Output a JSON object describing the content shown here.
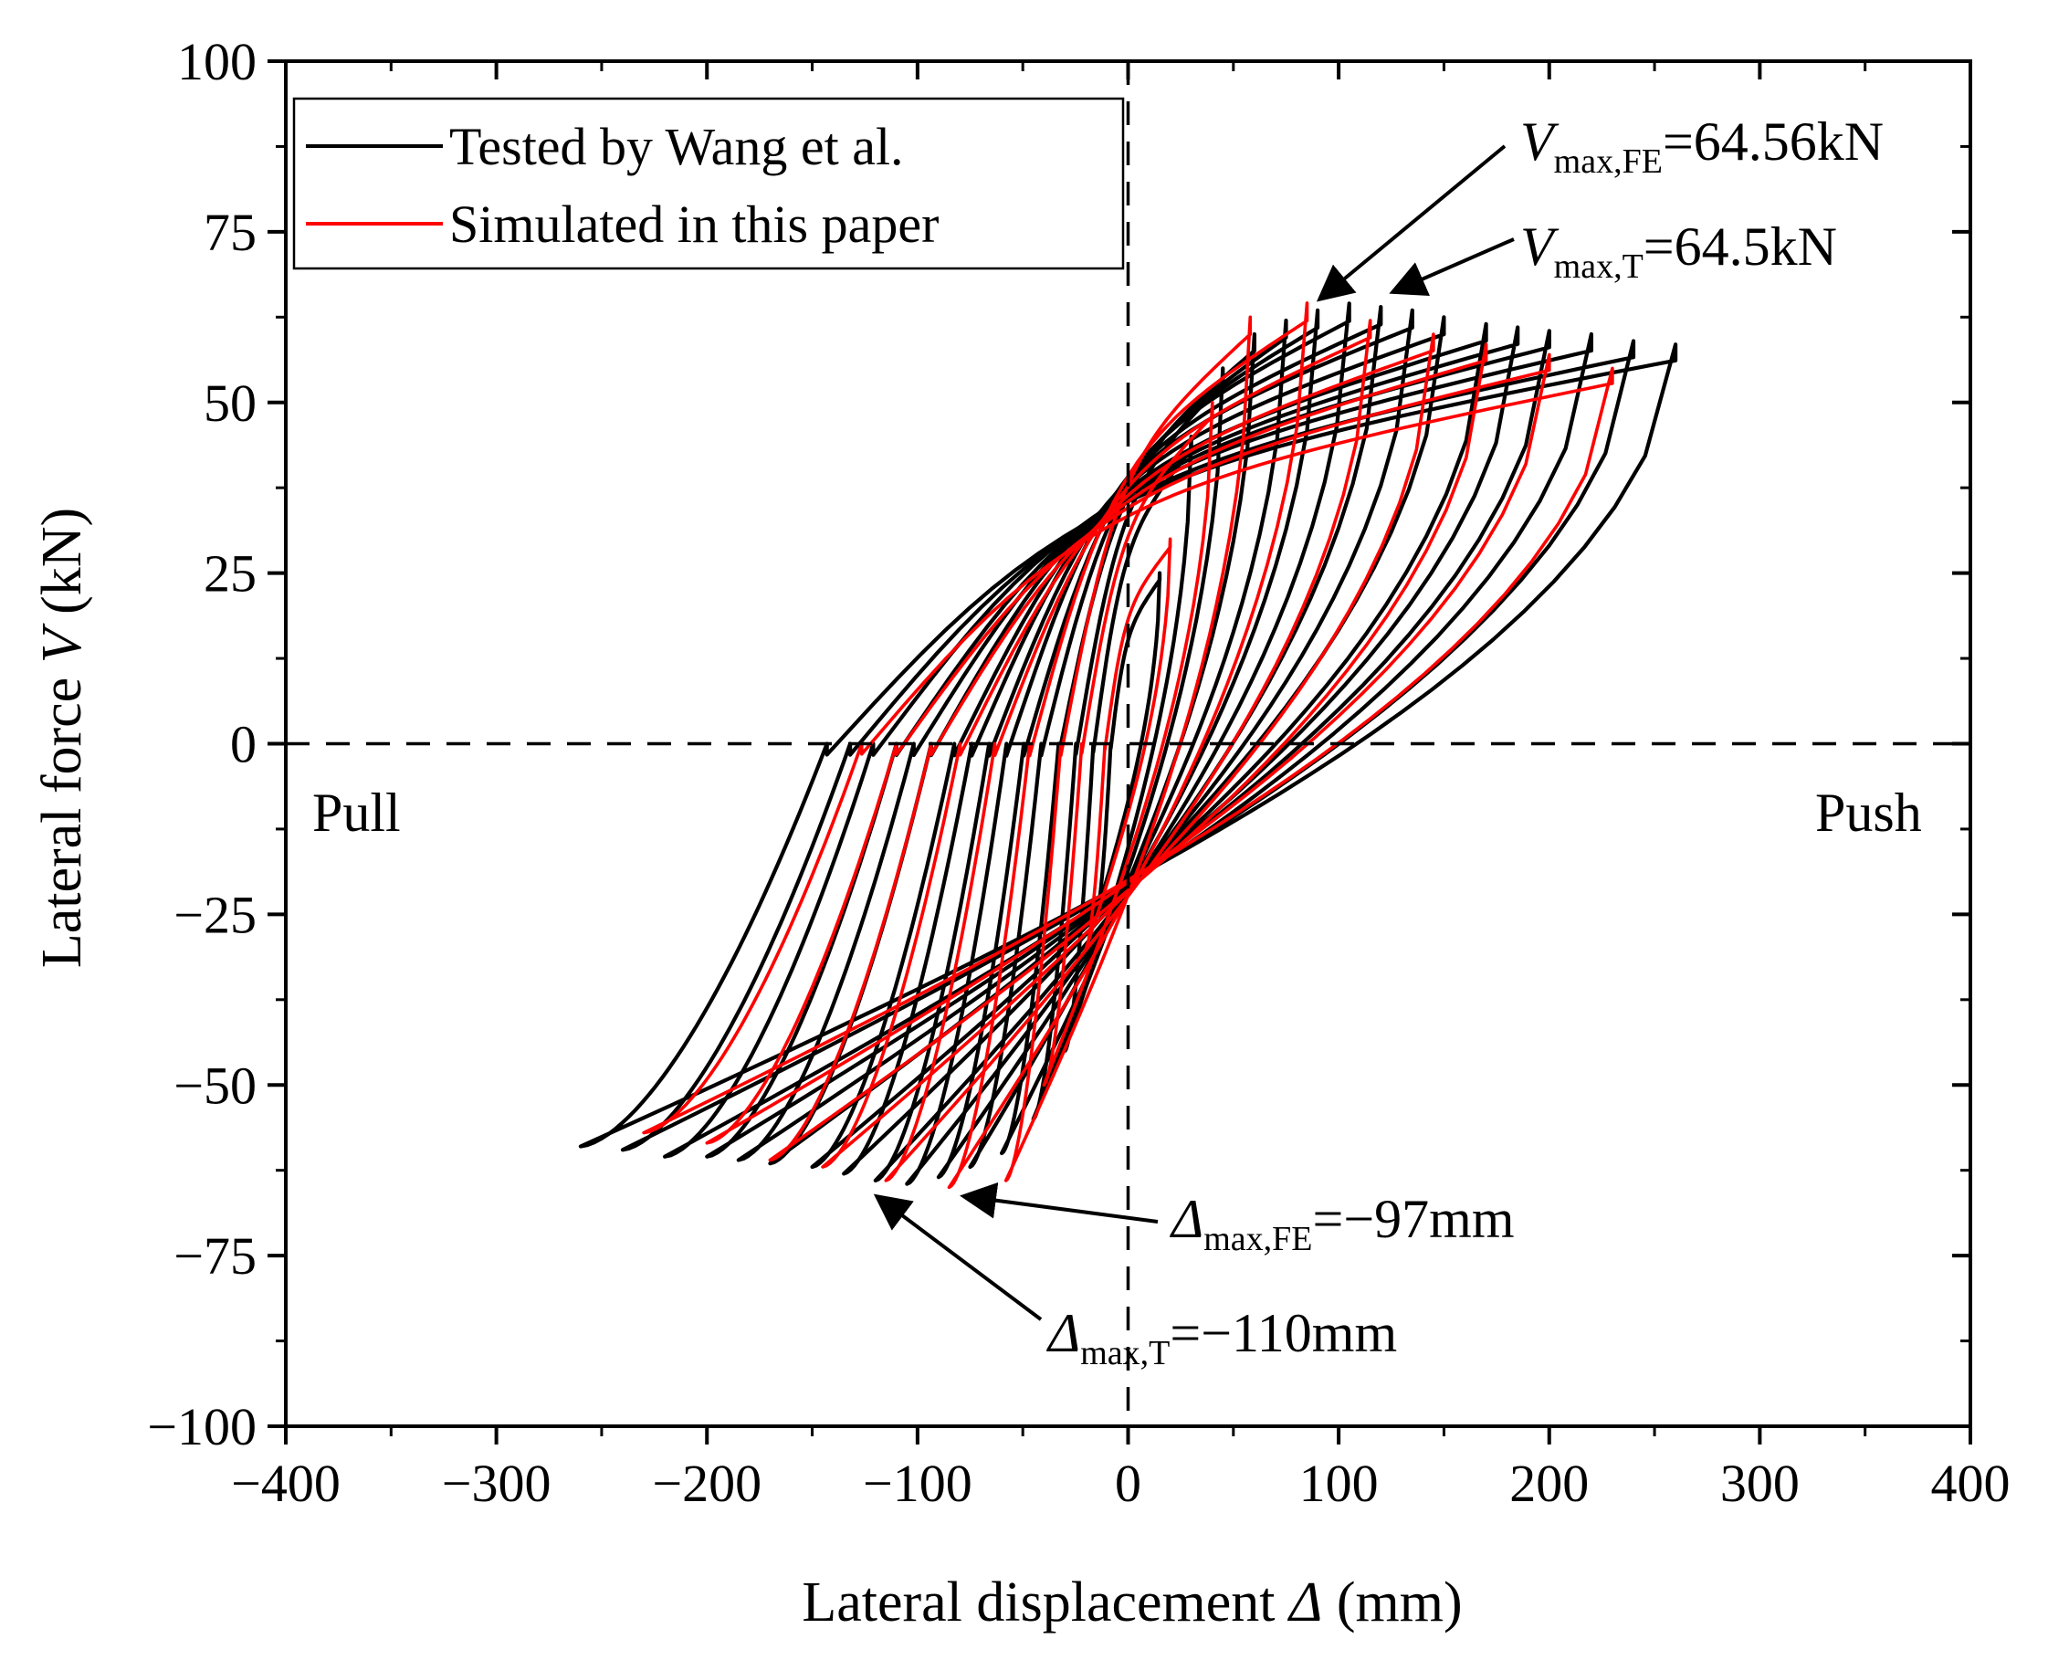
{
  "chart_data": {
    "type": "line",
    "xlabel": {
      "prefix": "Lateral displacement ",
      "symbol": "Δ",
      "suffix": " (mm)"
    },
    "ylabel": {
      "prefix": "Lateral force ",
      "symbol": "V",
      "suffix": " (kN)"
    },
    "xlim": [
      -400,
      400
    ],
    "ylim": [
      -100,
      100
    ],
    "xticks": [
      -400,
      -300,
      -200,
      -100,
      0,
      100,
      200,
      300,
      400
    ],
    "xtick_labels": [
      "−400",
      "−300",
      "−200",
      "−100",
      "0",
      "100",
      "200",
      "300",
      "400"
    ],
    "yticks": [
      -100,
      -75,
      -50,
      -25,
      0,
      25,
      50,
      75,
      100
    ],
    "ytick_labels": [
      "−100",
      "−75",
      "−50",
      "−25",
      "0",
      "25",
      "50",
      "75",
      "100"
    ],
    "legend": {
      "position": "top-left",
      "entries": [
        {
          "label": "Tested by Wang et al.",
          "color": "#000000"
        },
        {
          "label": "Simulated in this paper",
          "color": "#ff0000"
        }
      ]
    },
    "region_labels": {
      "left": "Pull",
      "right": "Push"
    },
    "annotations": [
      {
        "symbol": "V",
        "subscript": "max,FE",
        "value": "=64.56kN",
        "point": [
          85,
          64.56
        ]
      },
      {
        "symbol": "V",
        "subscript": "max,T",
        "value": "=64.5kN",
        "point": [
          120,
          64.5
        ]
      },
      {
        "symbol": "Δ",
        "subscript": "max,FE",
        "value": "=−97mm",
        "point": [
          -80,
          -65
        ]
      },
      {
        "symbol": "Δ",
        "subscript": "max,T",
        "value": "=−110mm",
        "point": [
          -120,
          -65
        ]
      }
    ],
    "series": [
      {
        "name": "Tested by Wang et al.",
        "color": "#000000",
        "cycles": [
          {
            "xmax": 15,
            "vmax": 25,
            "xmin": -15,
            "vmin": -25
          },
          {
            "xmax": 30,
            "vmax": 45,
            "xmin": -30,
            "vmin": -45
          },
          {
            "xmax": 45,
            "vmax": 55,
            "xmin": -45,
            "vmin": -55
          },
          {
            "xmax": 60,
            "vmax": 60,
            "xmin": -60,
            "vmin": -60
          },
          {
            "xmax": 75,
            "vmax": 62,
            "xmin": -75,
            "vmin": -62
          },
          {
            "xmax": 90,
            "vmax": 63.5,
            "xmin": -90,
            "vmin": -63.5
          },
          {
            "xmax": 105,
            "vmax": 64.5,
            "xmin": -105,
            "vmin": -64.5
          },
          {
            "xmax": 120,
            "vmax": 64,
            "xmin": -120,
            "vmin": -64
          },
          {
            "xmax": 135,
            "vmax": 63.5,
            "xmin": -135,
            "vmin": -63
          },
          {
            "xmax": 150,
            "vmax": 62.5,
            "xmin": -150,
            "vmin": -62
          },
          {
            "xmax": 170,
            "vmax": 61.5,
            "xmin": -170,
            "vmin": -61.5
          },
          {
            "xmax": 185,
            "vmax": 61,
            "xmin": -185,
            "vmin": -61
          },
          {
            "xmax": 200,
            "vmax": 60.5,
            "xmin": -200,
            "vmin": -60.5
          },
          {
            "xmax": 220,
            "vmax": 60,
            "xmin": -220,
            "vmin": -60.5
          },
          {
            "xmax": 240,
            "vmax": 59,
            "xmin": -240,
            "vmin": -59.5
          },
          {
            "xmax": 260,
            "vmax": 58.5,
            "xmin": -260,
            "vmin": -59
          }
        ]
      },
      {
        "name": "Simulated in this paper",
        "color": "#ff0000",
        "cycles": [
          {
            "xmax": 20,
            "vmax": 30,
            "xmin": -20,
            "vmin": -30
          },
          {
            "xmax": 40,
            "vmax": 50,
            "xmin": -40,
            "vmin": -50
          },
          {
            "xmax": 58,
            "vmax": 62.5,
            "xmin": -58,
            "vmin": -64
          },
          {
            "xmax": 85,
            "vmax": 64.56,
            "xmin": -85,
            "vmin": -65
          },
          {
            "xmax": 115,
            "vmax": 62,
            "xmin": -115,
            "vmin": -64
          },
          {
            "xmax": 145,
            "vmax": 60,
            "xmin": -145,
            "vmin": -62
          },
          {
            "xmax": 170,
            "vmax": 58.5,
            "xmin": -170,
            "vmin": -61
          },
          {
            "xmax": 200,
            "vmax": 57,
            "xmin": -200,
            "vmin": -58.5
          },
          {
            "xmax": 230,
            "vmax": 55,
            "xmin": -230,
            "vmin": -57
          }
        ]
      }
    ]
  }
}
